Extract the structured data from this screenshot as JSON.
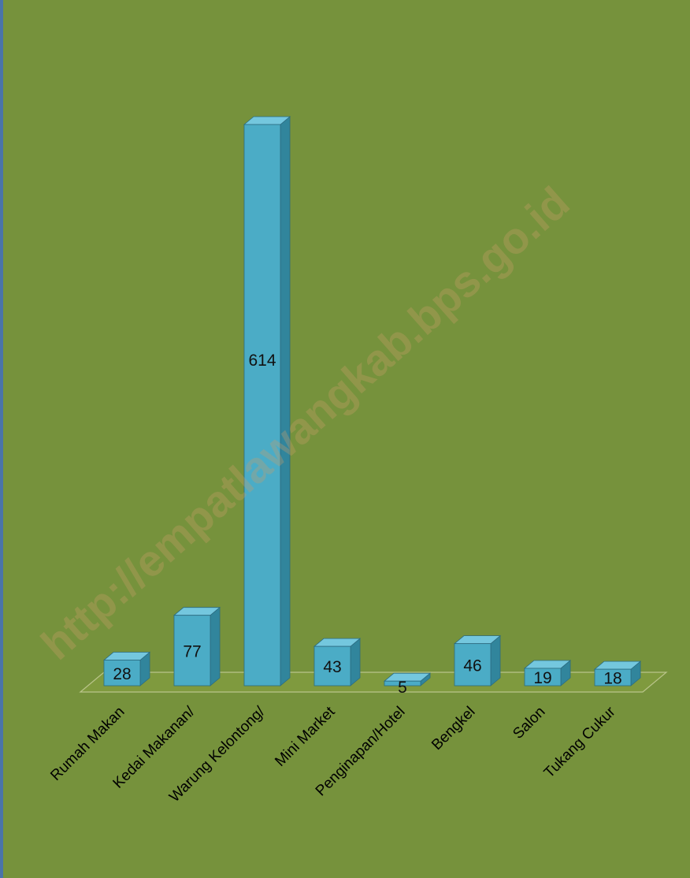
{
  "watermark": "http://empatlawangkab.bps.go.id",
  "colors": {
    "background": "#76923c",
    "bar_front": "#4bacc6",
    "bar_side": "#31859c",
    "bar_top": "#74c7de",
    "floor": "#7f9a3e",
    "border": "#4a74a8"
  },
  "chart_data": {
    "type": "bar",
    "style": "3d-column",
    "categories": [
      "Rumah Makan",
      "Kedai Makanan/",
      "Warung Kelontong/",
      "Mini Market",
      "Penginapan/Hotel",
      "Bengkel",
      "Salon",
      "Tukang Cukur"
    ],
    "values": [
      28,
      77,
      614,
      43,
      5,
      46,
      19,
      18
    ],
    "data_labels": [
      "28",
      "77",
      "614",
      "43",
      "5",
      "46",
      "19",
      "18"
    ],
    "ylim": [
      0,
      614
    ],
    "grid": false,
    "legend": "none",
    "x_tick_rotation": "-45"
  }
}
